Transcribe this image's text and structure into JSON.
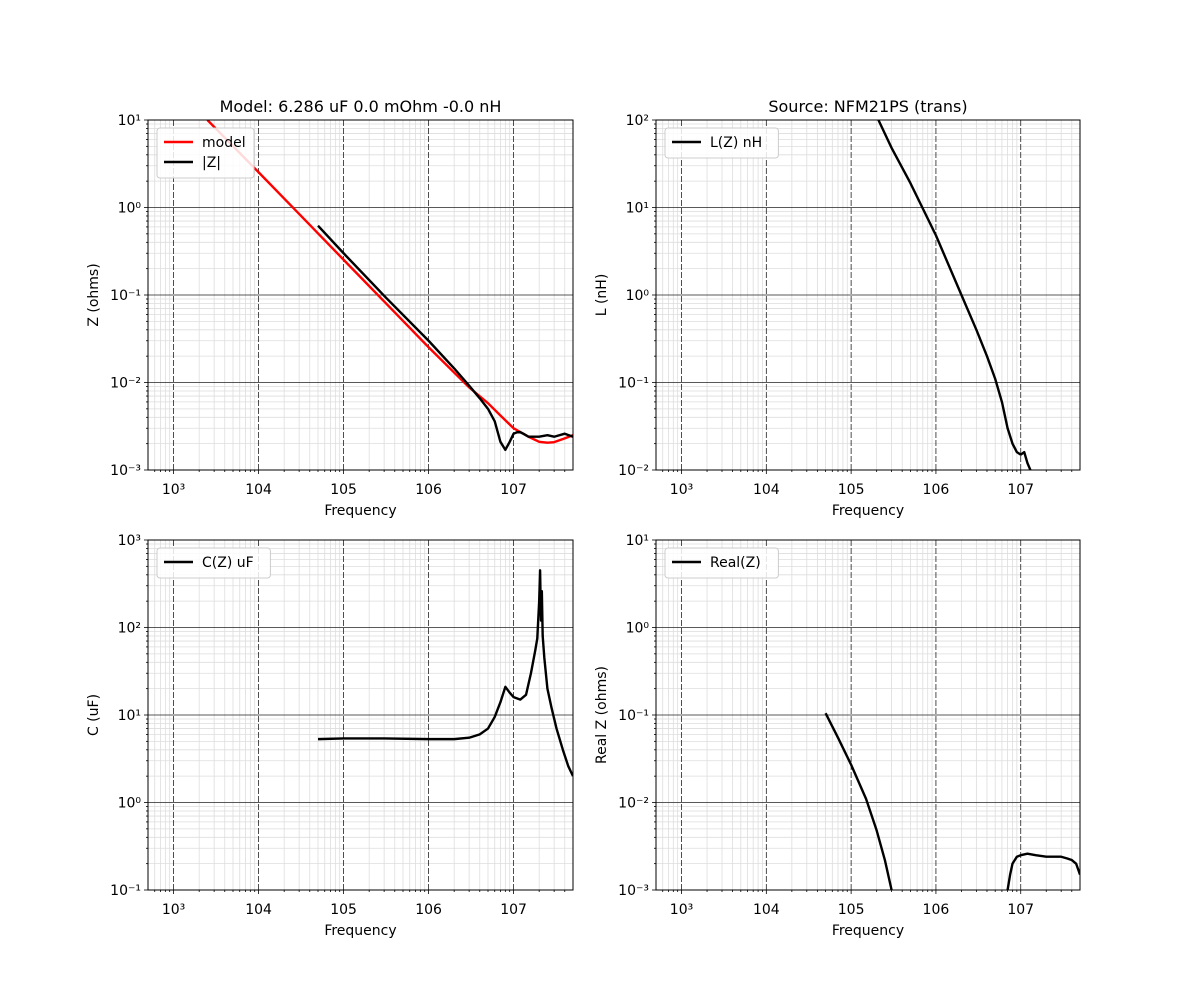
{
  "chart_data": [
    {
      "type": "line",
      "title": "Model: 6.286 uF 0.0 mOhm -0.0 nH",
      "xlabel": "Frequency",
      "ylabel": "Z (ohms)",
      "xscale": "log",
      "yscale": "log",
      "xlim": [
        500,
        50000000
      ],
      "ylim": [
        0.001,
        10
      ],
      "x_tick_exponents": [
        3,
        4,
        5,
        6,
        7
      ],
      "y_tick_exponents": [
        -3,
        -2,
        -1,
        0,
        1
      ],
      "grid": true,
      "legend": "upper left",
      "series": [
        {
          "name": "model",
          "color": "#ff0000",
          "x": [
            2500,
            10000,
            30000,
            100000,
            300000,
            1000000,
            3000000,
            5000000,
            7000000,
            10000000,
            15000000,
            20000000,
            25000000,
            30000000,
            40000000,
            50000000
          ],
          "y": [
            10.0,
            2.53,
            0.844,
            0.253,
            0.0844,
            0.0253,
            0.0088,
            0.0058,
            0.0042,
            0.003,
            0.0024,
            0.0021,
            0.00205,
            0.00208,
            0.0023,
            0.0025
          ]
        },
        {
          "name": "|Z|",
          "color": "#000000",
          "x": [
            50000,
            100000,
            300000,
            1000000,
            2000000,
            3000000,
            4000000,
            5000000,
            6000000,
            7000000,
            8000000,
            9000000,
            10000000,
            11000000,
            12000000,
            13000000,
            15000000,
            20000000,
            25000000,
            30000000,
            40000000,
            50000000
          ],
          "y": [
            0.62,
            0.3,
            0.098,
            0.03,
            0.0145,
            0.0092,
            0.0066,
            0.005,
            0.0036,
            0.0021,
            0.0017,
            0.0021,
            0.0026,
            0.0027,
            0.0027,
            0.0026,
            0.0024,
            0.0024,
            0.0025,
            0.0024,
            0.0026,
            0.0024
          ]
        }
      ]
    },
    {
      "type": "line",
      "title": "Source: NFM21PS (trans)",
      "xlabel": "Frequency",
      "ylabel": "L (nH)",
      "xscale": "log",
      "yscale": "log",
      "xlim": [
        500,
        50000000
      ],
      "ylim": [
        0.01,
        100
      ],
      "x_tick_exponents": [
        3,
        4,
        5,
        6,
        7
      ],
      "y_tick_exponents": [
        -2,
        -1,
        0,
        1,
        2
      ],
      "grid": true,
      "legend": "upper left",
      "series": [
        {
          "name": "L(Z) nH",
          "color": "#000000",
          "x": [
            210000,
            300000,
            500000,
            1000000,
            2000000,
            3000000,
            4000000,
            5000000,
            6000000,
            7000000,
            8000000,
            9000000,
            10000000,
            11000000,
            12000000,
            13000000
          ],
          "y": [
            100,
            48,
            19,
            4.8,
            1.0,
            0.4,
            0.2,
            0.11,
            0.06,
            0.03,
            0.02,
            0.016,
            0.015,
            0.016,
            0.012,
            0.01
          ]
        }
      ]
    },
    {
      "type": "line",
      "title": "",
      "xlabel": "Frequency",
      "ylabel": "C (uF)",
      "xscale": "log",
      "yscale": "log",
      "xlim": [
        500,
        50000000
      ],
      "ylim": [
        0.1,
        1000
      ],
      "x_tick_exponents": [
        3,
        4,
        5,
        6,
        7
      ],
      "y_tick_exponents": [
        -1,
        0,
        1,
        2,
        3
      ],
      "grid": true,
      "legend": "upper left",
      "series": [
        {
          "name": "C(Z) uF",
          "color": "#000000",
          "x": [
            50000,
            100000,
            300000,
            1000000,
            2000000,
            3000000,
            4000000,
            5000000,
            6000000,
            7000000,
            8000000,
            9000000,
            10000000,
            12000000,
            14000000,
            16000000,
            18000000,
            19000000,
            20000000,
            20500000,
            21000000,
            21500000,
            22000000,
            23000000,
            25000000,
            28000000,
            32000000,
            38000000,
            44000000,
            50000000
          ],
          "y": [
            5.3,
            5.4,
            5.4,
            5.3,
            5.3,
            5.5,
            6.0,
            7.0,
            9.5,
            14.0,
            21.0,
            18.0,
            16.0,
            15.0,
            17.0,
            30.0,
            55.0,
            75.0,
            200.0,
            450.0,
            120.0,
            260.0,
            80.0,
            45.0,
            20.0,
            12.0,
            7.0,
            4.0,
            2.6,
            2.0
          ]
        }
      ]
    },
    {
      "type": "line",
      "title": "",
      "xlabel": "Frequency",
      "ylabel": "Real Z (ohms)",
      "xscale": "log",
      "yscale": "log",
      "xlim": [
        500,
        50000000
      ],
      "ylim": [
        0.001,
        10
      ],
      "x_tick_exponents": [
        3,
        4,
        5,
        6,
        7
      ],
      "y_tick_exponents": [
        -3,
        -2,
        -1,
        0,
        1
      ],
      "grid": true,
      "legend": "upper left",
      "series": [
        {
          "name": "Real(Z)",
          "color": "#000000",
          "segments": [
            {
              "x": [
                50000,
                70000,
                100000,
                150000,
                200000,
                250000,
                300000
              ],
              "y": [
                0.105,
                0.055,
                0.027,
                0.011,
                0.0048,
                0.0022,
                0.001
              ]
            },
            {
              "x": [
                7000000,
                7500000,
                8000000,
                9000000,
                10000000,
                12000000,
                15000000,
                20000000,
                25000000,
                30000000,
                35000000,
                40000000,
                45000000,
                50000000
              ],
              "y": [
                0.001,
                0.0015,
                0.002,
                0.0024,
                0.0025,
                0.0026,
                0.0025,
                0.0024,
                0.0024,
                0.0024,
                0.0023,
                0.0022,
                0.002,
                0.0015
              ]
            }
          ]
        }
      ]
    }
  ]
}
